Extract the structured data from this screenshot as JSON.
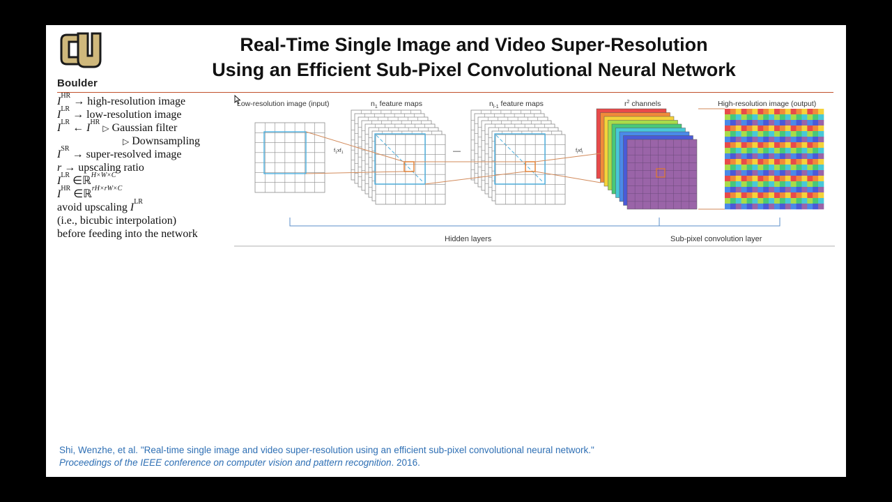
{
  "slide": {
    "logo": {
      "text": "Boulder",
      "icon": "cu-logo-icon"
    },
    "title": {
      "line1": "Real-Time Single Image and Video Super-Resolution",
      "line2": "Using an Efficient Sub-Pixel Convolutional Neural Network"
    },
    "notes": [
      {
        "sym": "I",
        "sup": "HR",
        "op": "→",
        "text": "high-resolution image"
      },
      {
        "sym": "I",
        "sup": "LR",
        "op": "→",
        "text": "low-resolution image"
      },
      {
        "sym": "I",
        "sup": "LR",
        "op": "←",
        "sym2": "I",
        "sup2": "HR",
        "tri": "▷",
        "text": "Gaussian filter"
      },
      {
        "tri": "▷",
        "text": "Downsampling"
      },
      {
        "sym": "I",
        "sup": "SR",
        "op": "→",
        "text": "super-resolved image"
      },
      {
        "sym": "r",
        "op": "→",
        "text": "upscaling ratio"
      },
      {
        "sym": "I",
        "sup": "LR",
        "op": "∈",
        "text": "ℝ",
        "sup_after": "H×W×C"
      },
      {
        "sym": "I",
        "sup": "HR",
        "op": "∈",
        "text": "ℝ",
        "sup_after": "rH×rW×C"
      },
      {
        "text": "avoid upscaling",
        "sym_after": "I",
        "sup_after": "LR"
      },
      {
        "text": "(i.e., bicubic interpolation)"
      },
      {
        "text": "before feeding into the network"
      }
    ],
    "figure": {
      "labels": {
        "input": "Low-resolution image (input)",
        "n1": "n",
        "n1_sub": "1",
        "n1_suffix": " feature maps",
        "nl": "n",
        "nl_sub": "l-1",
        "nl_suffix": " feature maps",
        "r2": "r",
        "r2_sup": "2",
        "r2_suffix": " channels",
        "output": "High-resolution image (output)",
        "f1": "f",
        "f1_sub": "1",
        "f1_mid": "xf",
        "f1_sub2": "1",
        "fl": "f",
        "fl_sub": "l",
        "fl_mid": "xf",
        "fl_sub2": "l",
        "dash": "—",
        "hidden": "Hidden layers",
        "subpixel": "Sub-pixel convolution layer"
      },
      "colors": {
        "grid": "#8a8a8a",
        "patch": "#4ab0e0",
        "kernel": "#e07a2a",
        "line": "#d28a5a",
        "brace": "#5a8ec8",
        "channels": [
          "#e84a4a",
          "#f08a3a",
          "#f4d23a",
          "#a8dc4a",
          "#48c878",
          "#48c8d8",
          "#4a8ae8",
          "#4a5ad8",
          "#9a64a8"
        ]
      }
    },
    "citation": {
      "line1": "Shi, Wenzhe, et al. \"Real-time single image and video super-resolution using an efficient sub-pixel convolutional neural network.\"",
      "line2_italic": "Proceedings of the IEEE conference on computer vision and pattern recognition",
      "line2_rest": ". 2016."
    }
  }
}
